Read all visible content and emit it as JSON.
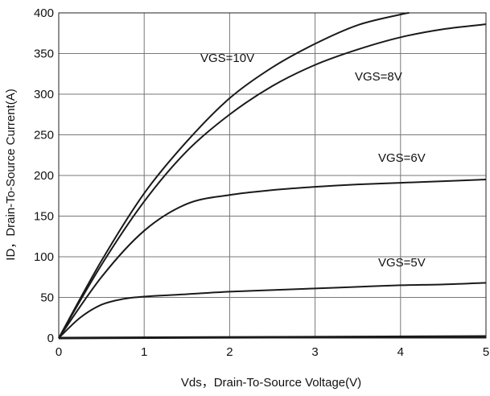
{
  "chart_data": {
    "type": "line",
    "title": "",
    "xlabel": "Vds，Drain-To-Source Voltage(V)",
    "ylabel": "ID，Drain-To-Source Current(A)",
    "xlim": [
      0,
      5
    ],
    "ylim": [
      0,
      400
    ],
    "x_ticks": [
      "0",
      "1",
      "2",
      "3",
      "4",
      "5"
    ],
    "y_ticks": [
      "0",
      "50",
      "100",
      "150",
      "200",
      "250",
      "300",
      "350",
      "400"
    ],
    "grid": true,
    "legend": "none",
    "line_color": "#1a1a1a",
    "series": [
      {
        "name": "VGS=10V",
        "x": [
          0,
          0.5,
          1,
          1.5,
          2,
          2.5,
          3,
          3.5,
          4,
          4.1
        ],
        "y": [
          0,
          95,
          178,
          242,
          295,
          333,
          362,
          385,
          398,
          400
        ]
      },
      {
        "name": "VGS=8V",
        "x": [
          0,
          0.5,
          1,
          1.5,
          2,
          2.5,
          3,
          3.5,
          4,
          4.5,
          5
        ],
        "y": [
          0,
          90,
          168,
          230,
          275,
          310,
          336,
          355,
          370,
          380,
          386
        ]
      },
      {
        "name": "VGS=6V",
        "x": [
          0,
          0.5,
          1,
          1.5,
          2,
          2.5,
          3,
          3.5,
          4,
          4.5,
          5
        ],
        "y": [
          0,
          75,
          132,
          165,
          176,
          182,
          186,
          189,
          191,
          193,
          195
        ]
      },
      {
        "name": "VGS=5V",
        "x": [
          0,
          0.25,
          0.5,
          0.75,
          1,
          1.5,
          2,
          2.5,
          3,
          3.5,
          4,
          4.5,
          5
        ],
        "y": [
          0,
          25,
          41,
          48,
          51,
          54,
          57,
          59,
          61,
          63,
          65,
          66,
          68
        ]
      },
      {
        "name": "",
        "x": [
          0,
          5
        ],
        "y": [
          0,
          2
        ]
      }
    ],
    "annotations": [
      "VGS=10V",
      "VGS=8V",
      "VGS=6V",
      "VGS=5V"
    ]
  }
}
